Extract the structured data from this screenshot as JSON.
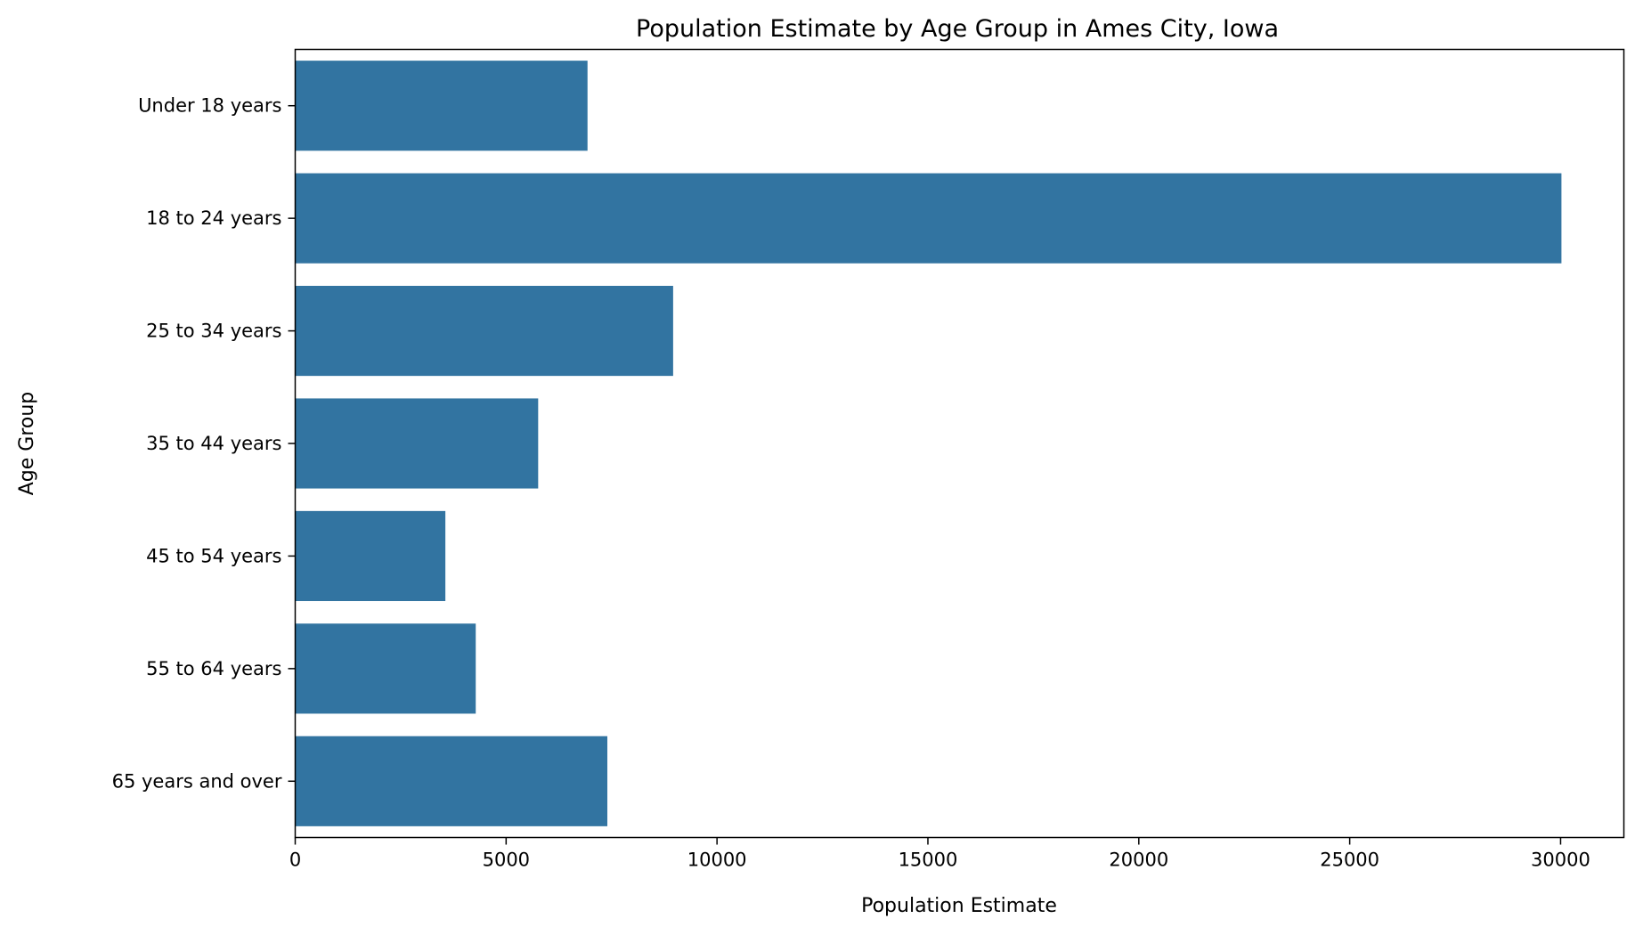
{
  "chart_data": {
    "type": "bar",
    "orientation": "horizontal",
    "title": "Population Estimate by Age Group in Ames City, Iowa",
    "xlabel": "Population Estimate",
    "ylabel": "Age Group",
    "categories": [
      "Under 18 years",
      "18 to 24 years",
      "25 to 34 years",
      "35 to 44 years",
      "45 to 54 years",
      "55 to 64 years",
      "65 years and over"
    ],
    "values": [
      6930,
      30020,
      8960,
      5760,
      3560,
      4280,
      7400
    ],
    "xlim": [
      0,
      31500
    ],
    "xticks": [
      0,
      5000,
      10000,
      15000,
      20000,
      25000,
      30000
    ],
    "grid": false,
    "legend": "none",
    "bar_color": "#3274a1"
  }
}
